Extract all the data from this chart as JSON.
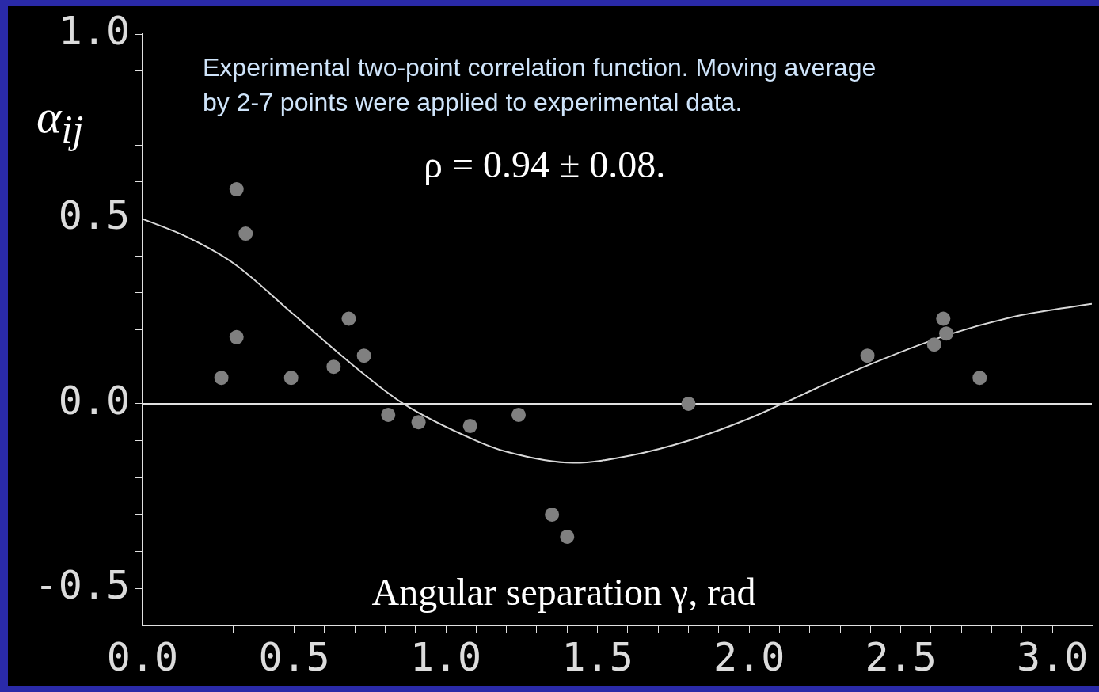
{
  "chart_data": {
    "type": "scatter",
    "xlabel": "Angular separation γ, rad",
    "ylabel": "α$_{ij}$",
    "annotations": [
      "Experimental two-point correlation function. Moving average by 2-7 points were applied to experimental data.",
      "ρ = 0.94 ± 0.08."
    ],
    "xlim": [
      0,
      3.13
    ],
    "ylim": [
      -0.6,
      1.0
    ],
    "xticks": [
      {
        "value": 0,
        "label": "0.0"
      },
      {
        "value": 0.1,
        "label": null
      },
      {
        "value": 0.2,
        "label": null
      },
      {
        "value": 0.3,
        "label": null
      },
      {
        "value": 0.4,
        "label": null
      },
      {
        "value": 0.5,
        "label": "0.5"
      },
      {
        "value": 0.6,
        "label": null
      },
      {
        "value": 0.7,
        "label": null
      },
      {
        "value": 0.8,
        "label": null
      },
      {
        "value": 0.9,
        "label": null
      },
      {
        "value": 1,
        "label": "1.0"
      },
      {
        "value": 1.1,
        "label": null
      },
      {
        "value": 1.2,
        "label": null
      },
      {
        "value": 1.3,
        "label": null
      },
      {
        "value": 1.4,
        "label": null
      },
      {
        "value": 1.5,
        "label": "1.5"
      },
      {
        "value": 1.6,
        "label": null
      },
      {
        "value": 1.7,
        "label": null
      },
      {
        "value": 1.8,
        "label": null
      },
      {
        "value": 1.9,
        "label": null
      },
      {
        "value": 2,
        "label": "2.0"
      },
      {
        "value": 2.1,
        "label": null
      },
      {
        "value": 2.2,
        "label": null
      },
      {
        "value": 2.3,
        "label": null
      },
      {
        "value": 2.4,
        "label": null
      },
      {
        "value": 2.5,
        "label": "2.5"
      },
      {
        "value": 2.6,
        "label": null
      },
      {
        "value": 2.7,
        "label": null
      },
      {
        "value": 2.8,
        "label": null
      },
      {
        "value": 2.9,
        "label": null
      },
      {
        "value": 3,
        "label": "3.0"
      }
    ],
    "yticks": [
      {
        "value": -0.5,
        "label": "-0.5"
      },
      {
        "value": -0.4,
        "label": null
      },
      {
        "value": -0.3,
        "label": null
      },
      {
        "value": -0.2,
        "label": null
      },
      {
        "value": -0.1,
        "label": null
      },
      {
        "value": 0,
        "label": "0.0"
      },
      {
        "value": 0.1,
        "label": null
      },
      {
        "value": 0.2,
        "label": null
      },
      {
        "value": 0.3,
        "label": null
      },
      {
        "value": 0.4,
        "label": null
      },
      {
        "value": 0.5,
        "label": "0.5"
      },
      {
        "value": 0.6,
        "label": null
      },
      {
        "value": 0.7,
        "label": null
      },
      {
        "value": 0.8,
        "label": null
      },
      {
        "value": 0.9,
        "label": null
      },
      {
        "value": 1,
        "label": "1.0"
      }
    ],
    "grid": false,
    "legend": false,
    "marker": "circle",
    "ref_lines": [
      {
        "axis": "y",
        "value": 0,
        "color": "#e0e0e0"
      }
    ],
    "series": [
      {
        "color": "#808080",
        "x": [
          0.26,
          0.31,
          0.31,
          0.34,
          0.49,
          0.63,
          0.68,
          0.73,
          0.81,
          0.91,
          1.08,
          1.24,
          1.35,
          1.4,
          1.8,
          2.39,
          2.61,
          2.64,
          2.65,
          2.76
        ],
        "values": [
          0.07,
          0.18,
          0.58,
          0.46,
          0.07,
          0.1,
          0.23,
          0.13,
          -0.03,
          -0.05,
          -0.06,
          -0.03,
          -0.3,
          -0.36,
          0.0,
          0.13,
          0.16,
          0.23,
          0.19,
          0.07
        ]
      },
      {
        "type": "line",
        "color": "#d8d8d8",
        "marker": "none",
        "x": [
          0,
          0.15,
          0.3,
          0.5,
          0.7,
          0.86,
          1.1,
          1.2,
          1.42,
          1.61,
          1.8,
          2.0,
          2.11,
          2.38,
          2.67,
          2.9,
          3.13
        ],
        "values": [
          0.5,
          0.45,
          0.38,
          0.24,
          0.1,
          0.0,
          -0.1,
          -0.13,
          -0.16,
          -0.14,
          -0.1,
          -0.04,
          0.0,
          0.1,
          0.19,
          0.24,
          0.27
        ]
      }
    ]
  }
}
